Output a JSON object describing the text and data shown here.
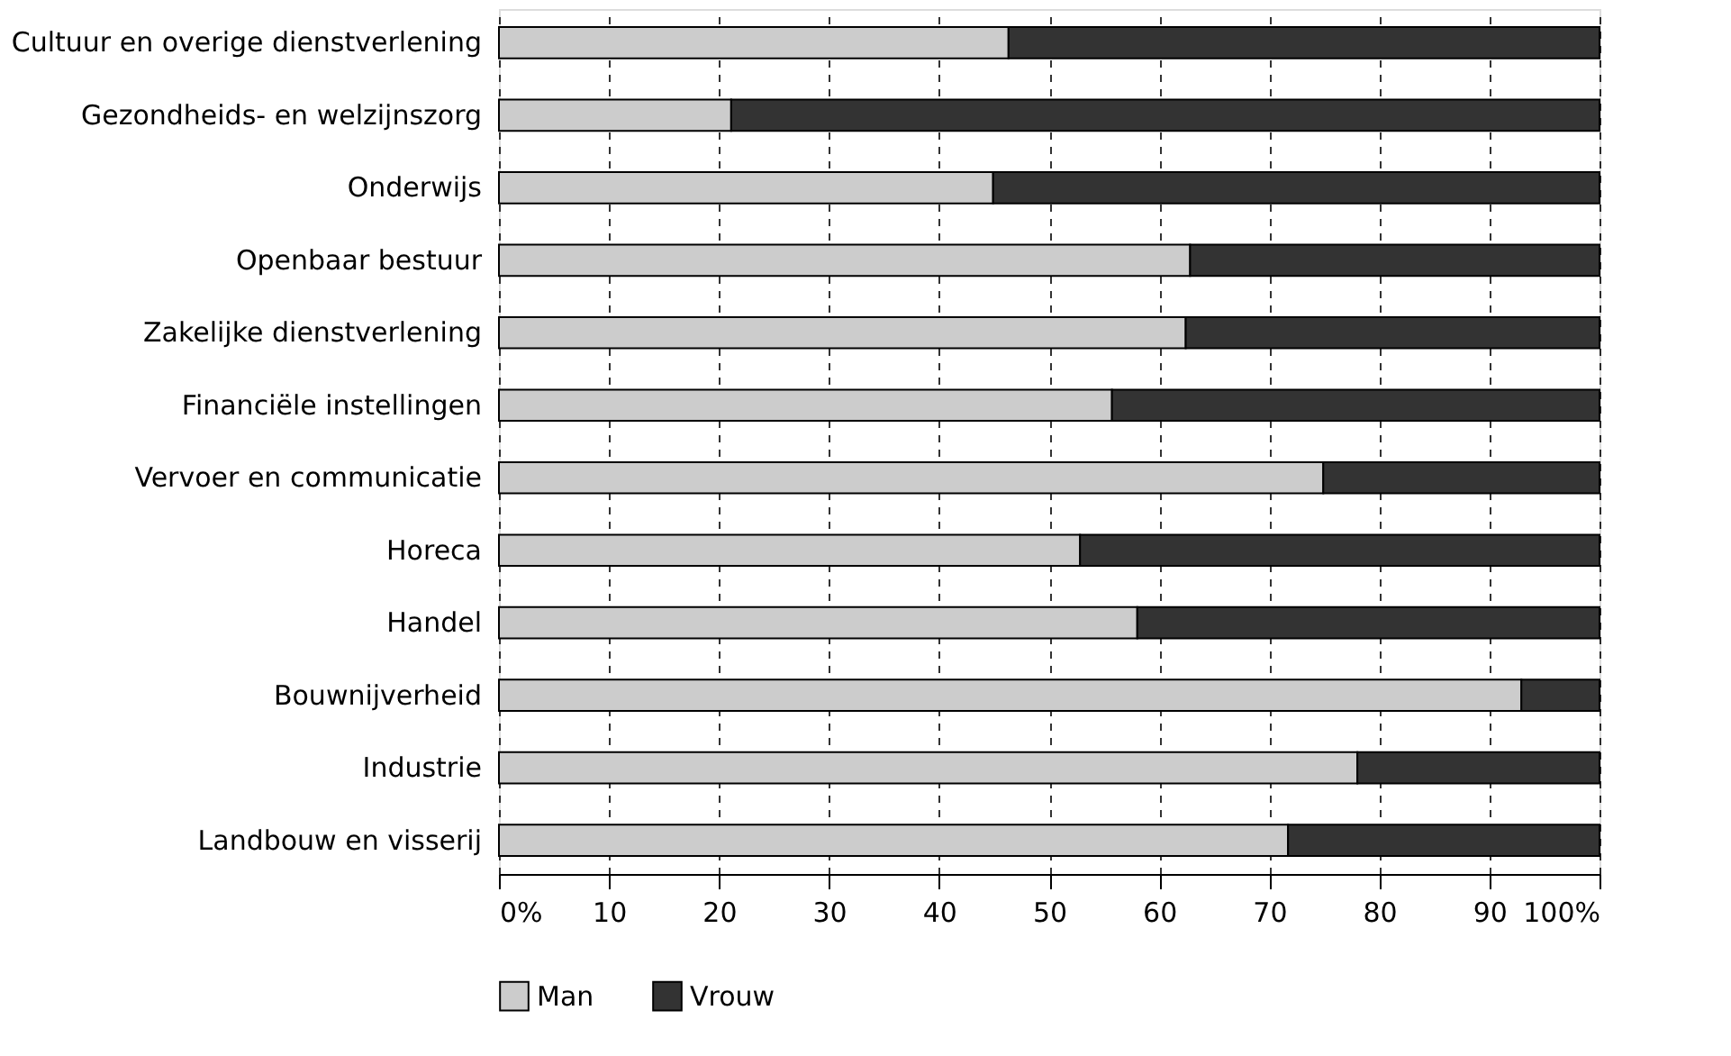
{
  "chart_data": {
    "type": "bar",
    "orientation": "horizontal",
    "stacked": true,
    "categories": [
      "Cultuur en overige dienstverlening",
      "Gezondheids- en welzijnszorg",
      "Onderwijs",
      "Openbaar bestuur",
      "Zakelijke dienstverlening",
      "Financiële instellingen",
      "Vervoer en communicatie",
      "Horeca",
      "Handel",
      "Bouwnijverheid",
      "Industrie",
      "Landbouw en visserij"
    ],
    "series": [
      {
        "name": "Man",
        "color": "#cccccc",
        "values": [
          46.3,
          21.1,
          44.9,
          62.8,
          62.4,
          55.7,
          74.9,
          52.8,
          58.0,
          92.9,
          78.0,
          71.7
        ]
      },
      {
        "name": "Vrouw",
        "color": "#333333",
        "values": [
          53.7,
          78.9,
          55.1,
          37.2,
          37.6,
          44.3,
          25.1,
          47.2,
          42.0,
          7.1,
          22.0,
          28.3
        ]
      }
    ],
    "xlim": [
      0,
      100
    ],
    "xticks": [
      {
        "value": 0,
        "label": "0%"
      },
      10,
      20,
      30,
      40,
      50,
      60,
      70,
      80,
      90,
      {
        "value": 100,
        "label": "100%"
      }
    ],
    "grid": "x",
    "legend": "bottom"
  }
}
